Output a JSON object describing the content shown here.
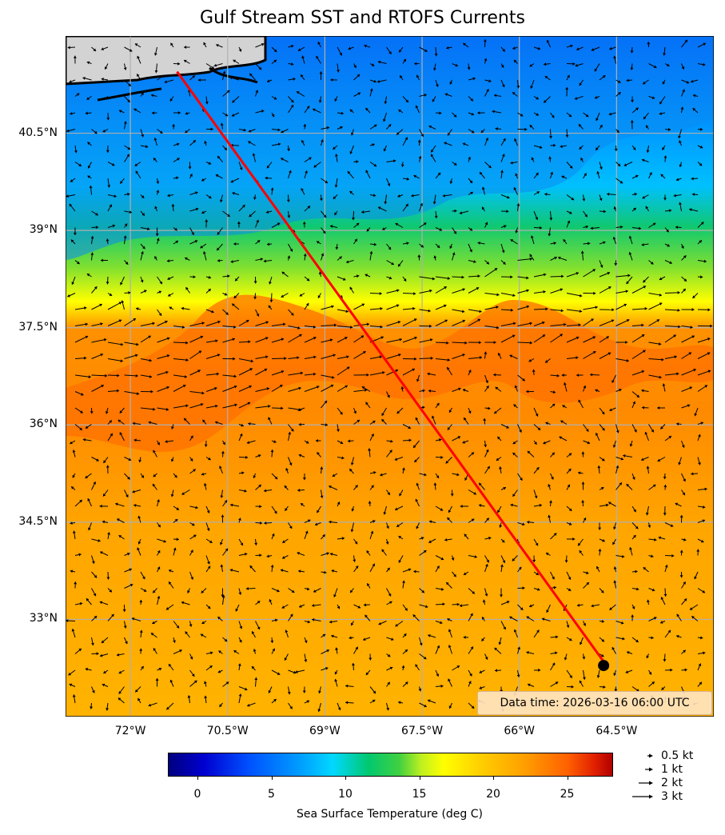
{
  "title": "Gulf Stream SST and RTOFS Currents",
  "map": {
    "lon_range": [
      -73.0,
      -63.0
    ],
    "lat_range": [
      31.5,
      42.0
    ],
    "lat_ticks": [
      "40.5°N",
      "39°N",
      "37.5°N",
      "36°N",
      "34.5°N",
      "33°N"
    ],
    "lon_ticks": [
      "72°W",
      "70.5°W",
      "69°W",
      "67.5°W",
      "66°W",
      "64.5°W"
    ],
    "lat_values": [
      40.5,
      39,
      37.5,
      36,
      34.5,
      33
    ],
    "lon_values": [
      -72,
      -70.5,
      -69,
      -67.5,
      -66,
      -64.5
    ],
    "gridlines": true,
    "land_color": "#d3d3d3",
    "route_color": "#ff0000",
    "route": {
      "start": [
        -71.28,
        41.45
      ],
      "end": [
        -64.7,
        32.35
      ]
    },
    "data_time": "Data time: 2026-03-16 06:00 UTC"
  },
  "colorbar": {
    "label": "Sea Surface Temperature (deg C)",
    "ticks": [
      "0",
      "5",
      "10",
      "15",
      "20",
      "25"
    ],
    "tick_values": [
      0,
      5,
      10,
      15,
      20,
      25
    ],
    "vmin": -2,
    "vmax": 28
  },
  "quiver_key": [
    {
      "label": "0.5 kt",
      "speed": 0.5
    },
    {
      "label": "1 kt",
      "speed": 1
    },
    {
      "label": "2 kt",
      "speed": 2
    },
    {
      "label": "3 kt",
      "speed": 3
    }
  ]
}
